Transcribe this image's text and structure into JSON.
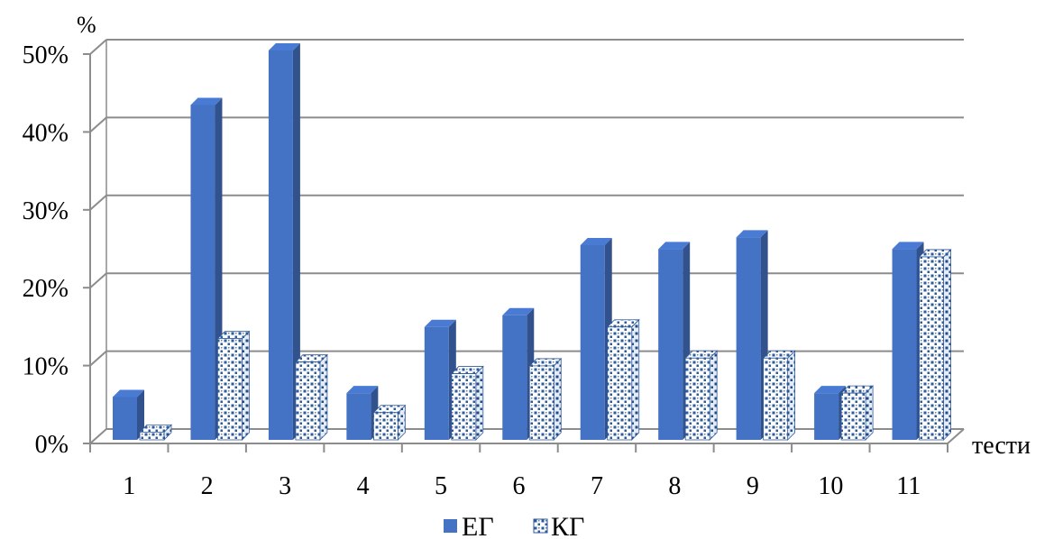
{
  "chart_data": {
    "type": "bar",
    "y_unit_label": "%",
    "xlabel": "тести",
    "categories": [
      "1",
      "2",
      "3",
      "4",
      "5",
      "6",
      "7",
      "8",
      "9",
      "10",
      "11"
    ],
    "series": [
      {
        "name": "ЕГ",
        "color": "#4472c4",
        "values": [
          5.5,
          43,
          50,
          6,
          14.5,
          16,
          25,
          24.5,
          26,
          6,
          24.5
        ]
      },
      {
        "name": "КГ",
        "color": "#ffffff",
        "pattern_color": "#2e5a9c",
        "values": [
          1,
          13,
          10,
          3.5,
          8.5,
          9.5,
          14.5,
          10.5,
          10.5,
          6,
          23.5
        ]
      }
    ],
    "y_ticks": [
      "0%",
      "10%",
      "20%",
      "30%",
      "40%",
      "50%"
    ],
    "ylim": [
      0,
      50
    ],
    "grid": true,
    "legend": "bottom-center"
  }
}
